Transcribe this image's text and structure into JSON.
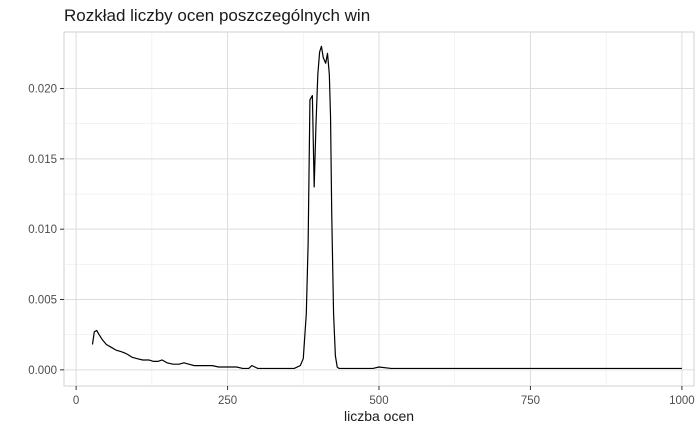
{
  "chart_data": {
    "type": "line",
    "title": "Rozkład liczby ocen poszczególnych win",
    "xlabel": "liczba ocen",
    "ylabel": "",
    "xlim": [
      -20,
      1020
    ],
    "ylim": [
      -0.00115,
      0.02402
    ],
    "x_ticks": [
      0,
      250,
      500,
      750,
      1000
    ],
    "x_tick_labels": [
      "0",
      "250",
      "500",
      "750",
      "1000"
    ],
    "y_ticks": [
      0.0,
      0.005,
      0.01,
      0.015,
      0.02
    ],
    "y_tick_labels": [
      "0.000",
      "0.005",
      "0.010",
      "0.015",
      "0.020"
    ],
    "grid": true,
    "legend": "none",
    "line_color": "#000000",
    "series": [
      {
        "x": [
          27,
          30,
          34,
          38,
          44,
          50,
          58,
          66,
          74,
          80,
          85,
          92,
          100,
          110,
          120,
          128,
          135,
          142,
          150,
          160,
          170,
          178,
          186,
          195,
          205,
          215,
          225,
          235,
          245,
          255,
          265,
          275,
          285,
          290,
          295,
          300,
          310,
          320,
          330,
          340,
          350,
          360,
          370,
          375,
          380,
          383,
          386,
          390,
          393,
          396,
          399,
          402,
          405,
          408,
          412,
          415,
          418,
          420,
          422,
          425,
          428,
          431,
          434,
          440,
          450,
          460,
          470,
          480,
          490,
          500,
          520,
          540,
          560,
          580,
          600,
          620,
          640,
          660,
          680,
          700,
          720,
          740,
          760,
          780,
          800,
          820,
          840,
          860,
          880,
          900,
          920,
          940,
          960,
          980,
          1000
        ],
        "y": [
          0.0018,
          0.0027,
          0.0028,
          0.0025,
          0.0021,
          0.0018,
          0.0016,
          0.0014,
          0.0013,
          0.0012,
          0.0011,
          0.0009,
          0.0008,
          0.0007,
          0.0007,
          0.0006,
          0.0006,
          0.0007,
          0.0005,
          0.0004,
          0.0004,
          0.0005,
          0.0004,
          0.0003,
          0.0003,
          0.0003,
          0.0003,
          0.0002,
          0.0002,
          0.0002,
          0.0002,
          0.0001,
          0.0001,
          0.0003,
          0.0002,
          0.0001,
          0.0001,
          0.0001,
          0.0001,
          0.0001,
          0.0001,
          0.0001,
          0.0003,
          0.0008,
          0.004,
          0.009,
          0.0192,
          0.0195,
          0.013,
          0.0175,
          0.021,
          0.0226,
          0.023,
          0.0222,
          0.0218,
          0.0225,
          0.021,
          0.018,
          0.011,
          0.004,
          0.001,
          0.0002,
          0.0001,
          0.0001,
          0.0001,
          0.0001,
          0.0001,
          0.0001,
          0.0001,
          0.0002,
          0.0001,
          0.0001,
          0.0001,
          0.0001,
          0.0001,
          0.0001,
          0.0001,
          0.0001,
          0.0001,
          0.0001,
          0.0001,
          0.0001,
          0.0001,
          0.0001,
          0.0001,
          0.0001,
          0.0001,
          0.0001,
          0.0001,
          0.0001,
          0.0001,
          0.0001,
          0.0001,
          0.0001,
          0.0001
        ]
      }
    ]
  }
}
